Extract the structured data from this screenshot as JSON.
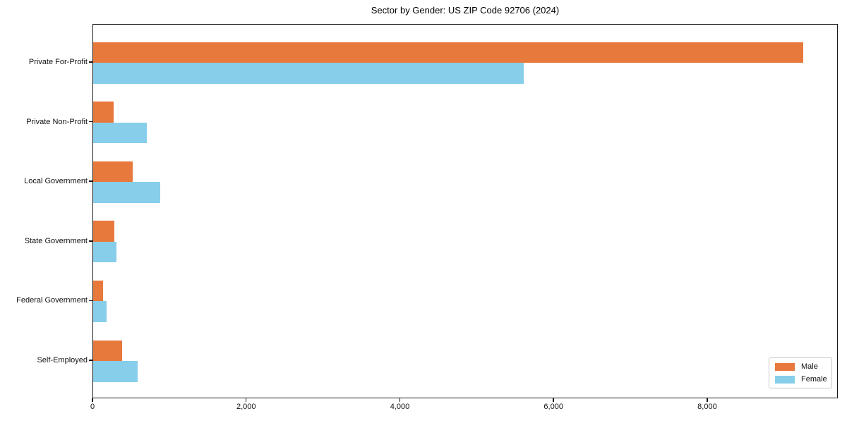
{
  "chart_data": {
    "type": "bar",
    "orientation": "horizontal",
    "title": "Sector by Gender: US ZIP Code 92706 (2024)",
    "categories": [
      "Private For-Profit",
      "Private Non-Profit",
      "Local Government",
      "State Government",
      "Federal Government",
      "Self-Employed"
    ],
    "series": [
      {
        "name": "Male",
        "color": "#e8793c",
        "values": [
          9240,
          270,
          515,
          280,
          130,
          380
        ]
      },
      {
        "name": "Female",
        "color": "#87ceeb",
        "values": [
          5600,
          700,
          870,
          305,
          175,
          580
        ]
      }
    ],
    "xlabel": "",
    "ylabel": "",
    "xlim": [
      0,
      9700
    ],
    "x_ticks": [
      0,
      2000,
      4000,
      6000,
      8000
    ],
    "x_tick_labels": [
      "0",
      "2,000",
      "4,000",
      "6,000",
      "8,000"
    ],
    "legend_position": "lower right",
    "grid": false,
    "background_color": "#ffffff",
    "spine_color": "#1a1a1a"
  }
}
